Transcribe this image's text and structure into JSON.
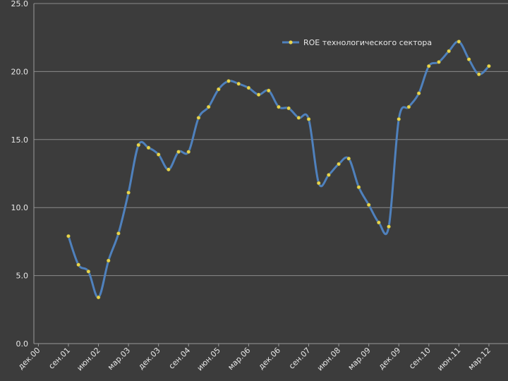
{
  "chart_data": {
    "type": "line",
    "categories": [
      "дек.00",
      null,
      null,
      "сен.01",
      null,
      null,
      "июн.02",
      null,
      null,
      "мар.03",
      null,
      null,
      "дек.03",
      null,
      null,
      "сен.04",
      null,
      null,
      "июн.05",
      null,
      null,
      "мар.06",
      null,
      null,
      "дек.06",
      null,
      null,
      "сен.07",
      null,
      null,
      "июн.08",
      null,
      null,
      "мар.09",
      null,
      null,
      "дек.09",
      null,
      null,
      "сен.10",
      null,
      null,
      "июн.11",
      null,
      null,
      "мар.12"
    ],
    "series": [
      {
        "name": "ROE технологического сектора",
        "color": "#4f81bd",
        "marker_color": "#e8d44d",
        "values": [
          null,
          null,
          null,
          7.9,
          5.8,
          5.3,
          3.4,
          6.1,
          8.1,
          11.1,
          14.6,
          14.4,
          13.9,
          12.8,
          14.1,
          14.1,
          16.6,
          17.4,
          18.7,
          19.3,
          19.1,
          18.8,
          18.3,
          18.6,
          17.4,
          17.3,
          16.6,
          16.5,
          11.8,
          12.4,
          13.2,
          13.6,
          11.5,
          10.2,
          8.9,
          8.6,
          16.5,
          17.4,
          18.4,
          20.4,
          20.7,
          21.5,
          22.2,
          20.9,
          19.8,
          20.4
        ]
      }
    ],
    "ylim": [
      0,
      25
    ],
    "yticks": [
      {
        "value": 0,
        "label": "0.0"
      },
      {
        "value": 5,
        "label": "5.0"
      },
      {
        "value": 10,
        "label": "10.0"
      },
      {
        "value": 15,
        "label": "15.0"
      },
      {
        "value": 20,
        "label": "20.0"
      },
      {
        "value": 25,
        "label": "25.0"
      }
    ],
    "grid": true,
    "legend": "upper right",
    "smooth": true
  }
}
